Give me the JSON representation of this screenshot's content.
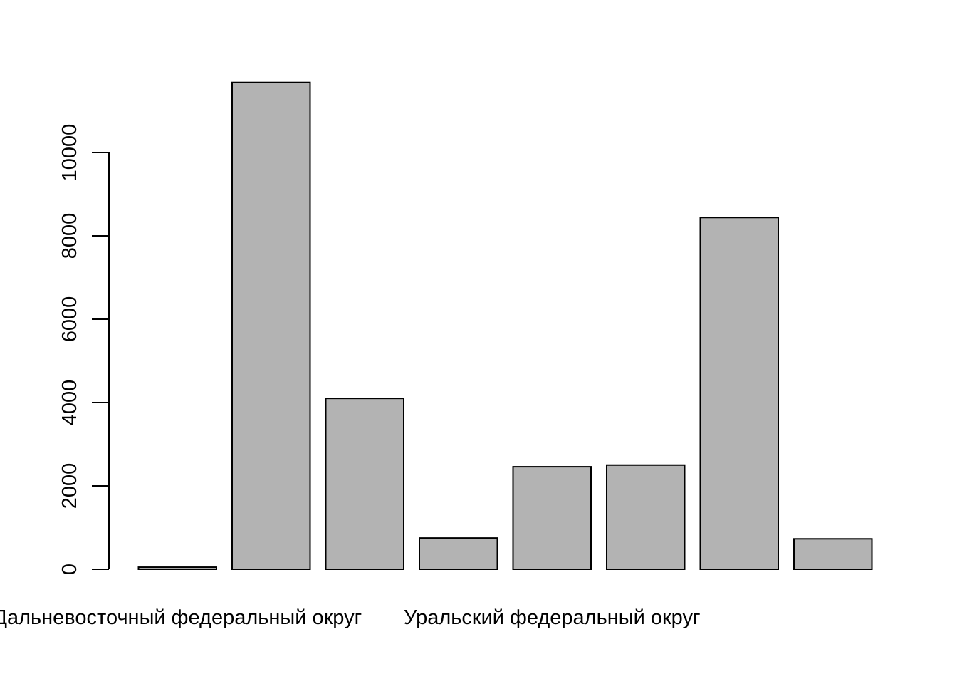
{
  "chart_data": {
    "type": "bar",
    "categories": [
      "Дальневосточный федеральный округ",
      "",
      "",
      "",
      "Уральский федеральный округ",
      "",
      "",
      ""
    ],
    "values": [
      50,
      11680,
      4100,
      750,
      2460,
      2500,
      8440,
      730
    ],
    "ylim": [
      0,
      11680
    ],
    "y_ticks": [
      0,
      2000,
      4000,
      6000,
      8000,
      10000
    ],
    "y_tick_labels": [
      "0",
      "2000",
      "4000",
      "6000",
      "8000",
      "10000"
    ],
    "x_tick_labels": [
      "Дальневосточный федеральный округ",
      "Уральский федеральный округ"
    ],
    "title": "",
    "xlabel": "",
    "ylabel": "",
    "grid": false,
    "bar_color": "#b3b3b3",
    "border_color": "#000000"
  }
}
